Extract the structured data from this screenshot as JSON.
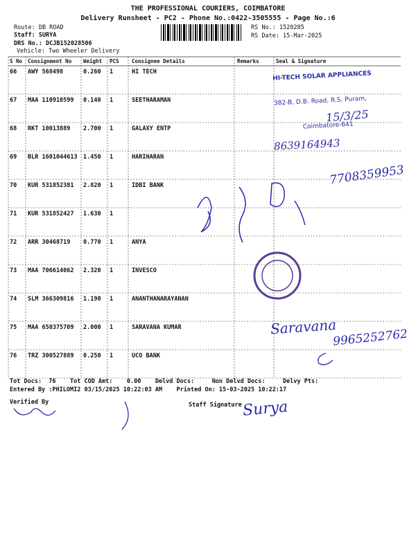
{
  "header": {
    "company": "THE PROFESSIONAL COURIERS, COIMBATORE",
    "subtitle": "Delivery Runsheet - PC2 - Phone No.:0422-3505555 - Page No.:6",
    "route": "Route: DB ROAD",
    "staff": "Staff: SURYA",
    "drs_no": "DRS No.: DCJB152028506",
    "vehicle": "Vehicle: Two Wheeler Delivery",
    "rs_no": "RS No.: 1520285",
    "rs_date": "RS Date: 15-Mar-2025"
  },
  "table": {
    "columns": [
      "S No",
      "Consignment No",
      "Weight",
      "PCS",
      "Consignee Details",
      "Remarks",
      "Seal & Signature"
    ],
    "rows": [
      [
        "66",
        "AWY 568498",
        "0.260",
        "1",
        "HI TECH"
      ],
      [
        "67",
        "MAA 110910599",
        "0.140",
        "1",
        "SEETHARAMAN"
      ],
      [
        "68",
        "RKT 10013889",
        "2.700",
        "1",
        "GALAXY ENTP"
      ],
      [
        "69",
        "BLR 1601044613",
        "1.450",
        "1",
        "HARIHARAN"
      ],
      [
        "70",
        "KUR 531852381",
        "2.820",
        "1",
        "IDBI BANK"
      ],
      [
        "71",
        "KUR 531852427",
        "1.630",
        "1",
        ""
      ],
      [
        "72",
        "ARR 30468719",
        "0.770",
        "1",
        "ANYA"
      ],
      [
        "73",
        "MAA 706614062",
        "2.320",
        "1",
        "INVESCO"
      ],
      [
        "74",
        "SLM 366309816",
        "1.190",
        "1",
        "ANANTHANARAYANAN"
      ],
      [
        "75",
        "MAA 650375709",
        "2.000",
        "1",
        "SARAVANA KUMAR"
      ],
      [
        "76",
        "TRZ 300527889",
        "0.250",
        "1",
        "UCO BANK"
      ]
    ]
  },
  "stamp": {
    "name": "HI-TECH SOLAR APPLIANCES",
    "address": "382-B, D.B. Road, R.S. Puram,",
    "city": "Coimbatore-641"
  },
  "footer": {
    "totals": "Tot Docs:  76    Tot COD Amt:    0.00    Delvd Docs:     Non Delvd Docs:     Delvy Pts:",
    "entered": "Entered By :PHILOMI2 03/15/2025 10:22:03 AM    Printed On: 15-03-2025 10:22:17",
    "verified_by": "Verified By",
    "staff_signature": "Staff Signature"
  },
  "handwriting": [
    "15/3/25",
    "8639164943",
    "7708359953",
    "Saravana",
    "9965252762",
    "Surya"
  ]
}
